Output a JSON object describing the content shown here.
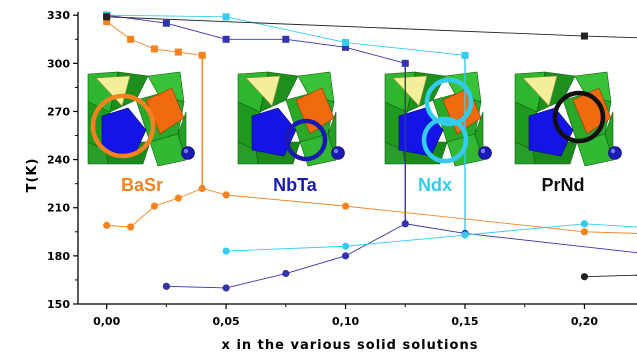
{
  "chart_data": {
    "type": "scatter",
    "xlabel": "x in the various solid solutions",
    "ylabel": "T(K)",
    "xlim": [
      -0.012,
      0.222
    ],
    "ylim": [
      150,
      332
    ],
    "x_ticks": [
      "0,00",
      "0,05",
      "0,10",
      "0,15",
      "0,20"
    ],
    "x_tick_values": [
      0,
      0.05,
      0.1,
      0.15,
      0.2
    ],
    "y_ticks": [
      "150",
      "180",
      "210",
      "240",
      "270",
      "300",
      "330"
    ],
    "y_tick_values": [
      150,
      180,
      210,
      240,
      270,
      300,
      330
    ],
    "grid": false,
    "series": [
      {
        "name": "BaSr",
        "color": "#F5821F",
        "groups": [
          {
            "marker": "square",
            "x": [
              0.0,
              0.01,
              0.02,
              0.03,
              0.04
            ],
            "y": [
              326,
              315,
              309,
              307,
              305
            ]
          },
          {
            "marker": "circle",
            "x": [
              0.0,
              0.01,
              0.02,
              0.03,
              0.04,
              0.05,
              0.1,
              0.2,
              0.222
            ],
            "y": [
              199,
              198,
              211,
              216,
              222,
              218,
              211,
              195,
              194
            ]
          }
        ],
        "connectors": [
          {
            "x": [
              0.04,
              0.04
            ],
            "y": [
              305,
              222
            ]
          }
        ]
      },
      {
        "name": "NbTa",
        "color": "#3333AA",
        "groups": [
          {
            "marker": "square",
            "x": [
              0.0,
              0.025,
              0.05,
              0.075,
              0.1,
              0.125
            ],
            "y": [
              330,
              325,
              315,
              315,
              310,
              300
            ]
          },
          {
            "marker": "circle",
            "x": [
              0.025,
              0.05,
              0.075,
              0.1,
              0.125,
              0.15,
              0.222
            ],
            "y": [
              161,
              160,
              169,
              180,
              200,
              194,
              182
            ]
          }
        ],
        "connectors": [
          {
            "x": [
              0.125,
              0.125
            ],
            "y": [
              300,
              200
            ]
          }
        ]
      },
      {
        "name": "Ndx",
        "color": "#33CCEE",
        "groups": [
          {
            "marker": "square",
            "x": [
              0.0,
              0.05,
              0.1,
              0.15
            ],
            "y": [
              330,
              329,
              313,
              305
            ]
          },
          {
            "marker": "circle",
            "x": [
              0.05,
              0.1,
              0.15,
              0.2,
              0.222
            ],
            "y": [
              183,
              186,
              193,
              200,
              198
            ]
          }
        ],
        "connectors": [
          {
            "x": [
              0.15,
              0.15
            ],
            "y": [
              305,
              193
            ]
          }
        ]
      },
      {
        "name": "PrNd",
        "color": "#222222",
        "groups": [
          {
            "marker": "square",
            "x": [
              0.0,
              0.2,
              0.222
            ],
            "y": [
              329,
              317,
              316
            ]
          },
          {
            "marker": "circle",
            "x": [
              0.2,
              0.222
            ],
            "y": [
              167,
              168
            ]
          }
        ],
        "connectors": []
      }
    ],
    "insets": [
      {
        "label": "BaSr",
        "label_color": "#F5821F",
        "circle_color": "#F5821F"
      },
      {
        "label": "NbTa",
        "label_color": "#1A1AB0",
        "circle_color": "#1A1AB0"
      },
      {
        "label": "Ndx",
        "label_color": "#33CCEE",
        "circle_color": "#33CCEE"
      },
      {
        "label": "PrNd",
        "label_color": "#111111",
        "circle_color": "#111111"
      }
    ]
  }
}
